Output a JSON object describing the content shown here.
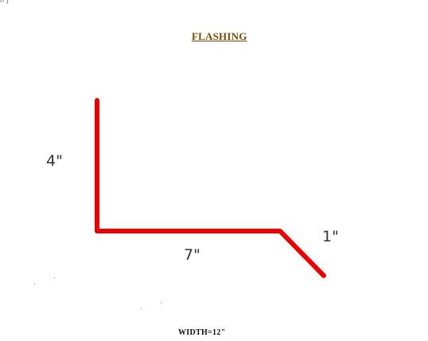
{
  "title": "FLASHING",
  "dimensions": {
    "vertical": "4\"",
    "horizontal": "7\"",
    "drip": "1\""
  },
  "width_label": "WIDTH=12\"",
  "corner_mark": "h ]",
  "profile": {
    "segments_inches": [
      4,
      7,
      1
    ],
    "stroke_color": "#ee0000"
  }
}
